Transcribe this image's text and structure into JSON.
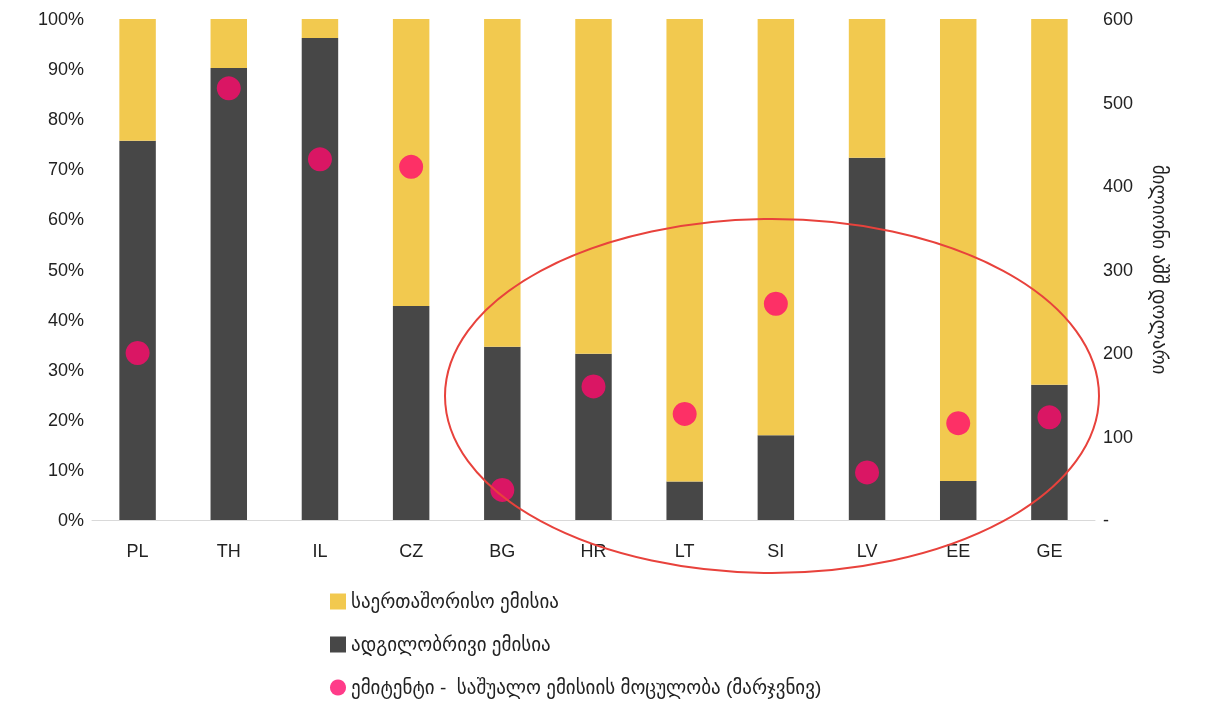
{
  "chart_data": {
    "type": "bar",
    "stacked": true,
    "categories": [
      "PL",
      "TH",
      "IL",
      "CZ",
      "BG",
      "HR",
      "LT",
      "SI",
      "LV",
      "EE",
      "GE"
    ],
    "series": [
      {
        "name": "ადგილობრივი ემისია",
        "color": "#474747",
        "values": [
          75.7,
          90.2,
          96.2,
          42.7,
          34.6,
          33.2,
          7.7,
          16.9,
          72.3,
          7.8,
          27
        ]
      },
      {
        "name": "საერთაშორისო ემისია",
        "color": "#f2c94f",
        "values": [
          24.3,
          9.8,
          3.8,
          57.3,
          65.4,
          66.8,
          92.3,
          83.1,
          27.7,
          92.2,
          73
        ]
      },
      {
        "name": "ემიტენტი -  საშუალო ემისიის მოცულობა (მარჯვნივ)",
        "type": "scatter",
        "axis": "y2",
        "marker": "circle",
        "color": "#ff0a6c",
        "values": [
          200,
          517,
          432,
          423,
          36,
          160,
          127,
          259,
          57,
          116,
          123
        ]
      }
    ],
    "ylim": [
      0,
      100
    ],
    "yticks": [
      {
        "value": 0,
        "label": "0%"
      },
      {
        "value": 10,
        "label": "10%"
      },
      {
        "value": 20,
        "label": "20%"
      },
      {
        "value": 30,
        "label": "30%"
      },
      {
        "value": 40,
        "label": "40%"
      },
      {
        "value": 50,
        "label": "50%"
      },
      {
        "value": 60,
        "label": "60%"
      },
      {
        "value": 70,
        "label": "70%"
      },
      {
        "value": 80,
        "label": "80%"
      },
      {
        "value": 90,
        "label": "90%"
      },
      {
        "value": 100,
        "label": "100%"
      }
    ],
    "y2lim": [
      0,
      600
    ],
    "y2ticks": [
      {
        "value": 0,
        "label": "-"
      },
      100,
      200,
      300,
      400,
      500,
      600
    ],
    "y2label": "მილიონი აშშ დოლარი",
    "grid": false,
    "legend": "bottom"
  }
}
